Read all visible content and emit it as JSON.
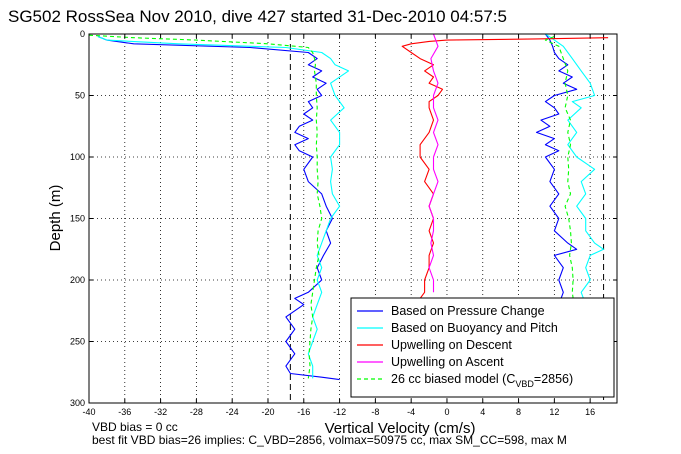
{
  "chart_data": {
    "type": "line",
    "title": "SG502 RossSea Nov 2010, dive 427 started 31-Dec-2010 04:57:5",
    "xlabel": "Vertical Velocity (cm/s)",
    "ylabel": "Depth (m)",
    "xlim": [
      -40,
      19
    ],
    "ylim": [
      300,
      0
    ],
    "y_reversed": true,
    "grid": true,
    "x_ticks": [
      -40,
      -36,
      -32,
      -28,
      -24,
      -20,
      -16,
      -12,
      -8,
      -4,
      0,
      4,
      8,
      12,
      16
    ],
    "y_ticks": [
      0,
      50,
      100,
      150,
      200,
      250,
      300
    ],
    "reference_lines_x": [
      -17.5,
      17.5
    ],
    "legend": {
      "placement": "bottom-right",
      "entries": [
        {
          "label": "Based on Pressure Change",
          "color": "#0000ff",
          "style": "solid"
        },
        {
          "label": "Based on Buoyancy and Pitch",
          "color": "#00ffff",
          "style": "solid"
        },
        {
          "label": "Upwelling on Descent",
          "color": "#ff0000",
          "style": "solid"
        },
        {
          "label": "Upwelling on Ascent",
          "color": "#ff00ff",
          "style": "solid"
        },
        {
          "label": "26 cc biased model (C",
          "sub": "VBD",
          "suffix": "=2856)",
          "color": "#00ff00",
          "style": "dashed"
        }
      ]
    },
    "series": [
      {
        "name": "Based on Pressure Change",
        "color": "#0000ff",
        "segments": [
          {
            "depth": [
              2,
              5,
              8,
              11,
              15,
              20,
              25,
              30,
              35,
              40,
              45,
              50,
              55,
              60,
              65,
              70,
              75,
              80,
              85,
              90,
              95,
              100,
              110,
              120,
              130,
              140,
              150,
              160,
              170,
              180,
              190,
              200,
              210,
              215,
              220,
              230,
              240,
              250,
              260,
              270,
              276,
              279,
              281
            ],
            "value": [
              -39,
              -38,
              -35,
              -22,
              -15.5,
              -14.5,
              -15.5,
              -14,
              -15,
              -13.5,
              -14.5,
              -14,
              -15.5,
              -15,
              -16,
              -15,
              -16.5,
              -17,
              -15.5,
              -17,
              -16.5,
              -15,
              -16,
              -15.5,
              -14,
              -13.5,
              -12.8,
              -13.5,
              -13,
              -13.8,
              -14.5,
              -14,
              -15.5,
              -17,
              -16,
              -18,
              -17,
              -18,
              -17,
              -18,
              -17.5,
              -14,
              -12
            ]
          },
          {
            "depth": [
              0,
              5,
              10,
              15,
              20,
              25,
              30,
              35,
              40,
              45,
              50,
              55,
              60,
              65,
              70,
              75,
              80,
              85,
              90,
              95,
              100,
              110,
              120,
              130,
              140,
              150,
              160,
              170,
              175,
              180,
              190,
              200,
              210,
              220
            ],
            "value": [
              11,
              11.5,
              11.8,
              12,
              12.5,
              13.5,
              12.5,
              14,
              13,
              14.5,
              12,
              11,
              12,
              12.5,
              10.5,
              11.5,
              10,
              12,
              11,
              12.5,
              11,
              12,
              11.5,
              12.5,
              11.5,
              12.5,
              12,
              13.5,
              14.5,
              12,
              13,
              12.5,
              13,
              12.5
            ]
          }
        ]
      },
      {
        "name": "Based on Buoyancy and Pitch",
        "color": "#00ffff",
        "segments": [
          {
            "depth": [
              2,
              5,
              8,
              11,
              15,
              20,
              25,
              30,
              40,
              50,
              60,
              70,
              80,
              90,
              100,
              110,
              120,
              130,
              140,
              150,
              160,
              170,
              180,
              190,
              200,
              210,
              220,
              230,
              240,
              250,
              260,
              270,
              280
            ],
            "value": [
              -39,
              -38,
              -30,
              -18,
              -14,
              -13,
              -12.5,
              -11,
              -13,
              -12.5,
              -11.5,
              -13,
              -12,
              -12,
              -13,
              -12.8,
              -13,
              -12.8,
              -12,
              -13,
              -13.5,
              -14,
              -14.5,
              -14,
              -14.5,
              -14,
              -14.5,
              -15,
              -14.5,
              -15,
              -15.5,
              -15,
              -15
            ]
          },
          {
            "depth": [
              0,
              5,
              10,
              20,
              30,
              40,
              50,
              55,
              60,
              70,
              80,
              90,
              100,
              105,
              110,
              120,
              130,
              140,
              150,
              160,
              170,
              175,
              180,
              190,
              200,
              210,
              220
            ],
            "value": [
              11,
              12,
              13,
              14,
              15,
              16,
              16.5,
              14,
              15,
              13.5,
              14.5,
              13.5,
              14.5,
              15.5,
              16.5,
              15,
              15.5,
              14.5,
              15.5,
              15.5,
              16.5,
              17.5,
              16,
              15.5,
              16,
              15,
              15.5
            ]
          }
        ]
      },
      {
        "name": "Upwelling on Descent",
        "color": "#ff0000",
        "segments": [
          {
            "depth": [
              3,
              4,
              5,
              6,
              8,
              10,
              15,
              20,
              25,
              30,
              35,
              40,
              45,
              50,
              55,
              60,
              70,
              80,
              90,
              100,
              110,
              120,
              130,
              140,
              150,
              160,
              170,
              180,
              190,
              200,
              210,
              215
            ],
            "value": [
              18,
              10,
              0,
              -2,
              -4,
              -5,
              -4,
              -3,
              -1.5,
              -2.5,
              -1.5,
              -2,
              -0.5,
              -1,
              -2,
              -2,
              -1.5,
              -2,
              -3,
              -3,
              -2,
              -2.5,
              -1.5,
              -2,
              -1.5,
              -2,
              -1.5,
              -2,
              -2,
              -2.5,
              -2.5,
              -3
            ]
          }
        ]
      },
      {
        "name": "Upwelling on Ascent",
        "color": "#ff00ff",
        "segments": [
          {
            "depth": [
              0,
              10,
              20,
              30,
              40,
              50,
              60,
              70,
              80,
              90,
              100,
              110,
              120,
              130,
              140,
              150,
              160,
              170,
              180,
              190,
              200,
              210
            ],
            "value": [
              -1.5,
              -1,
              -1.8,
              -1.5,
              -1,
              -1.5,
              -1.5,
              -1,
              -1.5,
              -1,
              -1.5,
              -1.5,
              -1,
              -1.5,
              -2,
              -1.5,
              -1.5,
              -1.8,
              -1.5,
              -2,
              -1.5,
              -1.5
            ]
          }
        ]
      },
      {
        "name": "26 cc biased model (CVBD=2856)",
        "color": "#00ff00",
        "dashed": true,
        "segments": [
          {
            "depth": [
              1,
              3,
              5,
              8,
              11,
              15,
              20,
              25,
              30,
              40,
              50,
              60,
              70,
              80,
              90,
              100,
              110,
              120,
              130,
              140,
              150,
              160,
              170,
              180,
              190,
              200,
              210,
              220,
              230,
              240,
              250,
              260,
              270,
              280
            ],
            "value": [
              -40,
              -35,
              -28,
              -20,
              -15.5,
              -15,
              -14.8,
              -14.7,
              -14.8,
              -14.6,
              -14.6,
              -14.5,
              -14.6,
              -14.5,
              -14.6,
              -14.5,
              -14.5,
              -14.4,
              -14.5,
              -14.2,
              -14.0,
              -14.4,
              -14.5,
              -14.3,
              -14.6,
              -14.8,
              -15,
              -15.2,
              -15,
              -15.2,
              -15.3,
              -15.4,
              -15.3,
              -15.5
            ]
          },
          {
            "depth": [
              2,
              5,
              10,
              20,
              30,
              40,
              50,
              60,
              70,
              80,
              90,
              100,
              110,
              120,
              130,
              140,
              150,
              160,
              170,
              180,
              190,
              200,
              210,
              220
            ],
            "value": [
              12,
              11,
              12.5,
              13,
              13.5,
              13.2,
              13.5,
              13.2,
              13.8,
              13.5,
              13.8,
              13.5,
              13.6,
              13.5,
              13.8,
              13.2,
              13.6,
              13.8,
              13.9,
              13.7,
              14,
              14.1,
              14,
              14.2
            ]
          }
        ]
      }
    ],
    "annotations": [
      "VBD bias = 0 cc",
      "best fit VBD bias=26 implies: C_VBD=2856, volmax=50975 cc, max SM_CC=598, max M"
    ]
  }
}
